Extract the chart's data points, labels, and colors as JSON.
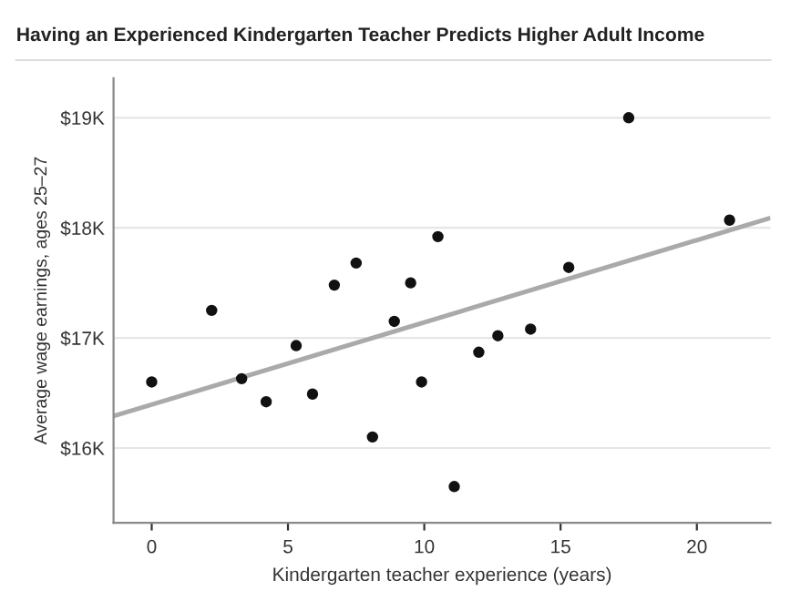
{
  "chart_data": {
    "type": "scatter",
    "title": "Having an Experienced Kindergarten Teacher Predicts Higher Adult Income",
    "xlabel": "Kindergarten teacher experience (years)",
    "ylabel": "Average wage earnings, ages 25–27",
    "series": [
      {
        "color": "#111111",
        "marker": "circle",
        "x": [
          0,
          2.2,
          3.3,
          4.2,
          5.3,
          5.9,
          6.7,
          7.5,
          8.1,
          8.9,
          9.5,
          9.9,
          10.5,
          11.1,
          12.0,
          12.7,
          13.9,
          15.3,
          17.5,
          21.2
        ],
        "values": [
          16.6,
          17.25,
          16.63,
          16.42,
          16.93,
          16.49,
          17.48,
          17.68,
          16.1,
          17.15,
          17.5,
          16.6,
          17.92,
          15.65,
          16.87,
          17.02,
          17.08,
          17.64,
          19.0,
          18.07
        ]
      },
      {
        "type": "line",
        "color": "#aaaaaa",
        "x": [
          -1.4,
          22.7
        ],
        "values": [
          16.29,
          18.09
        ]
      }
    ],
    "xlim": [
      -1.4,
      22.7
    ],
    "xticks": [
      0,
      5,
      10,
      15,
      20
    ],
    "ylim": [
      15.32,
      19.36
    ],
    "yticks": [
      {
        "value": 16,
        "label": "$16K"
      },
      {
        "value": 17,
        "label": "$17K"
      },
      {
        "value": 18,
        "label": "$18K"
      },
      {
        "value": 19,
        "label": "$19K"
      }
    ],
    "grid": "y"
  }
}
